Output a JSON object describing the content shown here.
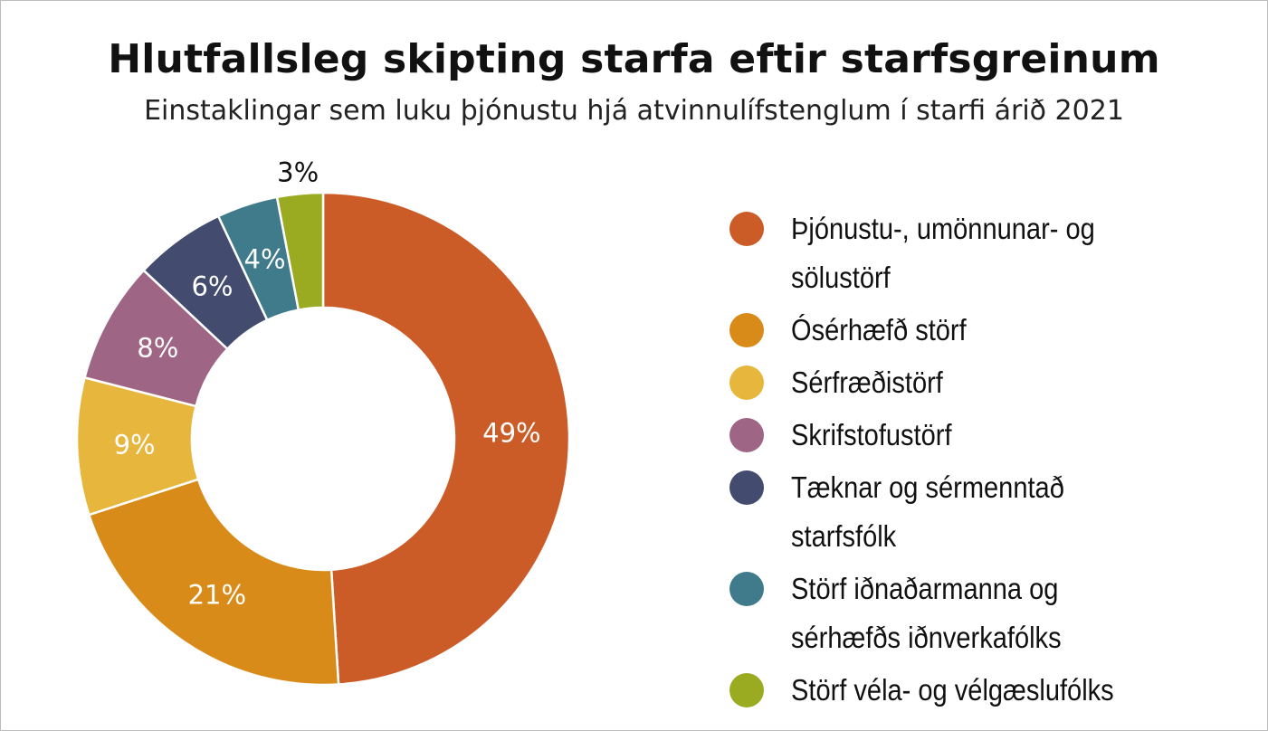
{
  "title": "Hlutfallsleg skipting starfa eftir starfsgreinum",
  "subtitle": "Einstaklingar sem luku þjónustu hjá atvinnulífstenglum í starfi árið 2021",
  "chart_data": {
    "type": "pie",
    "variant": "donut",
    "title": "Hlutfallsleg skipting starfa eftir starfsgreinum",
    "subtitle": "Einstaklingar sem luku þjónustu hjá atvinnulífstenglum í starfi árið 2021",
    "legend_position": "right",
    "unit": "%",
    "slices": [
      {
        "label": "Þjónustu-, umönnunar- og sölustörf",
        "value": 49,
        "display": "49%",
        "color": "#cc5c27"
      },
      {
        "label": "Ósérhæfð störf",
        "value": 21,
        "display": "21%",
        "color": "#d98b19"
      },
      {
        "label": "Sérfræðistörf",
        "value": 9,
        "display": "9%",
        "color": "#e6b73c"
      },
      {
        "label": "Skrifstofustörf",
        "value": 8,
        "display": "8%",
        "color": "#9e6584"
      },
      {
        "label": "Tæknar og sérmenntað starfsfólk",
        "value": 6,
        "display": "6%",
        "color": "#434b6f"
      },
      {
        "label": "Störf iðnaðarmanna og sérhæfðs iðnverkafólks",
        "value": 4,
        "display": "4%",
        "color": "#3f7b8a"
      },
      {
        "label": "Störf véla- og vélgæslufólks",
        "value": 3,
        "display": "3%",
        "color": "#9aab22"
      }
    ]
  }
}
